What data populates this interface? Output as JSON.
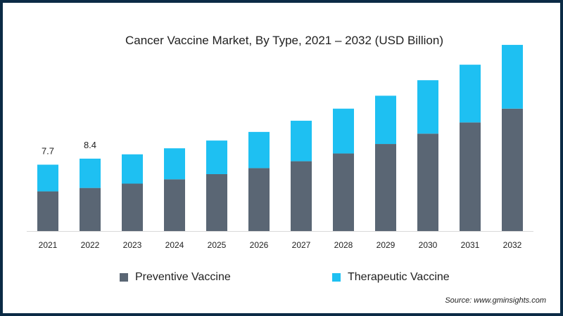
{
  "chart_data": {
    "type": "bar",
    "stacked": true,
    "title": "Cancer Vaccine Market, By Type, 2021 – 2032 (USD Billion)",
    "xlabel": "",
    "ylabel": "",
    "categories": [
      "2021",
      "2022",
      "2023",
      "2024",
      "2025",
      "2026",
      "2027",
      "2028",
      "2029",
      "2030",
      "2031",
      "2032"
    ],
    "series": [
      {
        "name": "Preventive Vaccine",
        "color": "#5a6674",
        "values": [
          4.6,
          5.0,
          5.5,
          6.0,
          6.6,
          7.3,
          8.1,
          9.0,
          10.1,
          11.3,
          12.6,
          14.2
        ]
      },
      {
        "name": "Therapeutic Vaccine",
        "color": "#1ec0f2",
        "values": [
          3.1,
          3.4,
          3.4,
          3.6,
          3.9,
          4.2,
          4.7,
          5.2,
          5.6,
          6.2,
          6.7,
          7.4
        ]
      }
    ],
    "data_labels": [
      "7.7",
      "8.4",
      "",
      "",
      "",
      "",
      "",
      "",
      "",
      "",
      "",
      ""
    ],
    "ylim": [
      0,
      22
    ],
    "grid": false,
    "legend_position": "bottom"
  },
  "source": "Source: www.gminsights.com"
}
